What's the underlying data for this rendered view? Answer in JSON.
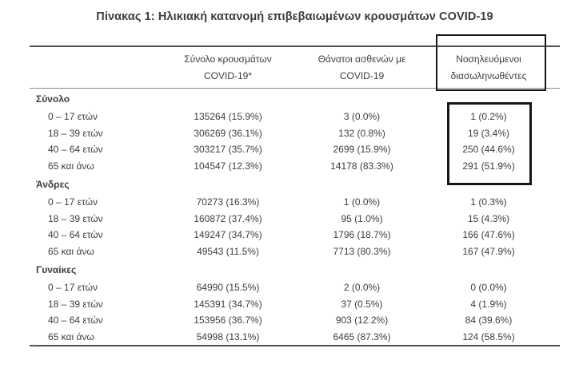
{
  "title": "Πίνακας 1: Ηλικιακή κατανομή επιβεβαιωμένων κρουσμάτων COVID-19",
  "footnote_marker": "*",
  "table": {
    "header": {
      "cases_line1": "Σύνολο κρουσμάτων",
      "cases_line2": "COVID-19*",
      "deaths_line1": "Θάνατοι ασθενών με",
      "deaths_line2": "COVID-19",
      "intubated_line1": "Νοσηλευόμενοι",
      "intubated_line2": "διασωληνωθέντες"
    },
    "sections": [
      {
        "label": "Σύνολο",
        "rows": [
          {
            "age": "0 – 17 ετών",
            "cases": "135264 (15.9%)",
            "deaths": "3 (0.0%)",
            "intubated": "1 (0.2%)"
          },
          {
            "age": "18 – 39 ετών",
            "cases": "306269 (36.1%)",
            "deaths": "132 (0.8%)",
            "intubated": "19 (3.4%)"
          },
          {
            "age": "40 – 64 ετών",
            "cases": "303217 (35.7%)",
            "deaths": "2699 (15.9%)",
            "intubated": "250 (44.6%)"
          },
          {
            "age": "65 και άνω",
            "cases": "104547 (12.3%)",
            "deaths": "14178 (83.3%)",
            "intubated": "291 (51.9%)"
          }
        ]
      },
      {
        "label": "Άνδρες",
        "rows": [
          {
            "age": "0 – 17 ετών",
            "cases": "70273 (16.3%)",
            "deaths": "1 (0.0%)",
            "intubated": "1 (0.3%)"
          },
          {
            "age": "18 – 39 ετών",
            "cases": "160872 (37.4%)",
            "deaths": "95 (1.0%)",
            "intubated": "15 (4.3%)"
          },
          {
            "age": "40 – 64 ετών",
            "cases": "149247 (34.7%)",
            "deaths": "1796 (18.7%)",
            "intubated": "166 (47.6%)"
          },
          {
            "age": "65 και άνω",
            "cases": "49543 (11.5%)",
            "deaths": "7713 (80.3%)",
            "intubated": "167 (47.9%)"
          }
        ]
      },
      {
        "label": "Γυναίκες",
        "rows": [
          {
            "age": "0 – 17 ετών",
            "cases": "64990 (15.5%)",
            "deaths": "2 (0.0%)",
            "intubated": "0 (0.0%)"
          },
          {
            "age": "18 – 39 ετών",
            "cases": "145391 (34.7%)",
            "deaths": "37 (0.5%)",
            "intubated": "4 (1.9%)"
          },
          {
            "age": "40 – 64 ετών",
            "cases": "153956 (36.7%)",
            "deaths": "903 (12.2%)",
            "intubated": "84 (39.6%)"
          },
          {
            "age": "65 και άνω",
            "cases": "54998 (13.1%)",
            "deaths": "6465 (87.3%)",
            "intubated": "124 (58.5%)"
          }
        ]
      }
    ]
  },
  "colors": {
    "text": "#3d3d3d",
    "rule_heavy": "#4f4f4f",
    "rule_light": "#8a8a8a",
    "highlight_box": "#161616"
  }
}
